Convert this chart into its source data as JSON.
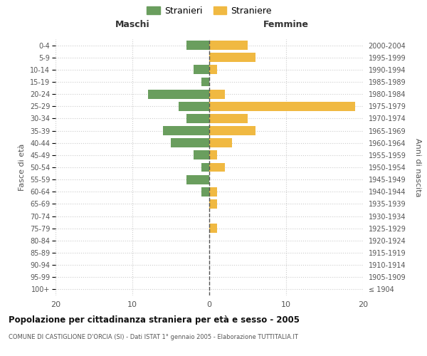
{
  "age_groups": [
    "100+",
    "95-99",
    "90-94",
    "85-89",
    "80-84",
    "75-79",
    "70-74",
    "65-69",
    "60-64",
    "55-59",
    "50-54",
    "45-49",
    "40-44",
    "35-39",
    "30-34",
    "25-29",
    "20-24",
    "15-19",
    "10-14",
    "5-9",
    "0-4"
  ],
  "birth_years": [
    "≤ 1904",
    "1905-1909",
    "1910-1914",
    "1915-1919",
    "1920-1924",
    "1925-1929",
    "1930-1934",
    "1935-1939",
    "1940-1944",
    "1945-1949",
    "1950-1954",
    "1955-1959",
    "1960-1964",
    "1965-1969",
    "1970-1974",
    "1975-1979",
    "1980-1984",
    "1985-1989",
    "1990-1994",
    "1995-1999",
    "2000-2004"
  ],
  "maschi": [
    0,
    0,
    0,
    0,
    0,
    0,
    0,
    0,
    1,
    3,
    1,
    2,
    5,
    6,
    3,
    4,
    8,
    1,
    2,
    0,
    3
  ],
  "femmine": [
    0,
    0,
    0,
    0,
    0,
    1,
    0,
    1,
    1,
    0,
    2,
    1,
    3,
    6,
    5,
    19,
    2,
    0,
    1,
    6,
    5
  ],
  "maschi_color": "#6a9e5e",
  "femmine_color": "#f0b942",
  "background_color": "#ffffff",
  "grid_color": "#cccccc",
  "title": "Popolazione per cittadinanza straniera per età e sesso - 2005",
  "subtitle": "COMUNE DI CASTIGLIONE D'ORCIA (SI) - Dati ISTAT 1° gennaio 2005 - Elaborazione TUTTITALIA.IT",
  "xlabel_left": "Maschi",
  "xlabel_right": "Femmine",
  "ylabel_left": "Fasce di età",
  "ylabel_right": "Anni di nascita",
  "legend_maschi": "Stranieri",
  "legend_femmine": "Straniere",
  "xlim": 20,
  "dashed_line_color": "#555555"
}
